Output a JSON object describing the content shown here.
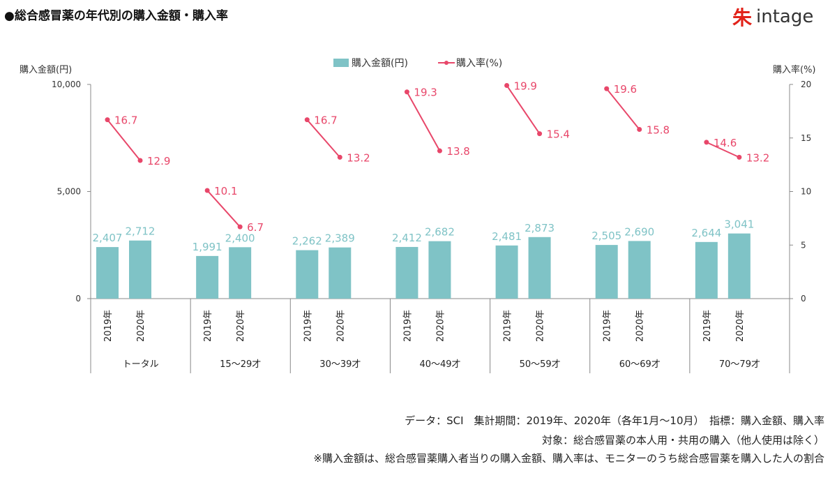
{
  "title": "●総合感冒薬の年代別の購入金額・購入率",
  "logo": {
    "mark": "朱",
    "text": "intage"
  },
  "chart_data": {
    "type": "bar+line",
    "categories": [
      "トータル",
      "15～29才",
      "30～39才",
      "40～49才",
      "50～59才",
      "60～69才",
      "70～79才"
    ],
    "years": [
      "2019年",
      "2020年"
    ],
    "series": [
      {
        "name": "購入金額(円)",
        "type": "bar",
        "axis": "left",
        "color": "#7fc3c6",
        "values": [
          [
            2407,
            2712
          ],
          [
            1991,
            2400
          ],
          [
            2262,
            2389
          ],
          [
            2412,
            2682
          ],
          [
            2481,
            2873
          ],
          [
            2505,
            2690
          ],
          [
            2644,
            3041
          ]
        ],
        "labels": [
          [
            "2,407",
            "2,712"
          ],
          [
            "1,991",
            "2,400"
          ],
          [
            "2,262",
            "2,389"
          ],
          [
            "2,412",
            "2,682"
          ],
          [
            "2,481",
            "2,873"
          ],
          [
            "2,505",
            "2,690"
          ],
          [
            "2,644",
            "3,041"
          ]
        ]
      },
      {
        "name": "購入率(%)",
        "type": "line",
        "axis": "right",
        "color": "#e8476a",
        "values": [
          [
            16.7,
            12.9
          ],
          [
            10.1,
            6.7
          ],
          [
            16.7,
            13.2
          ],
          [
            19.3,
            13.8
          ],
          [
            19.9,
            15.4
          ],
          [
            19.6,
            15.8
          ],
          [
            14.6,
            13.2
          ]
        ]
      }
    ],
    "ylabel_left": "購入金額(円)",
    "ylim_left": [
      0,
      10000
    ],
    "yticks_left": [
      "0",
      "5,000",
      "10,000"
    ],
    "ylabel_right": "購入率(%)",
    "ylim_right": [
      0,
      20
    ],
    "yticks_right": [
      "0",
      "5",
      "10",
      "15",
      "20"
    ],
    "legend": "top-center"
  },
  "notes": [
    "データ：SCI　集計期間：2019年、2020年（各年1月～10月）　指標：購入金額、購入率",
    "対象：総合感冒薬の本人用・共用の購入（他人使用は除く）",
    "※購入金額は、総合感冒薬購入者当りの購入金額、購入率は、モニターのうち総合感冒薬を購入した人の割合"
  ]
}
